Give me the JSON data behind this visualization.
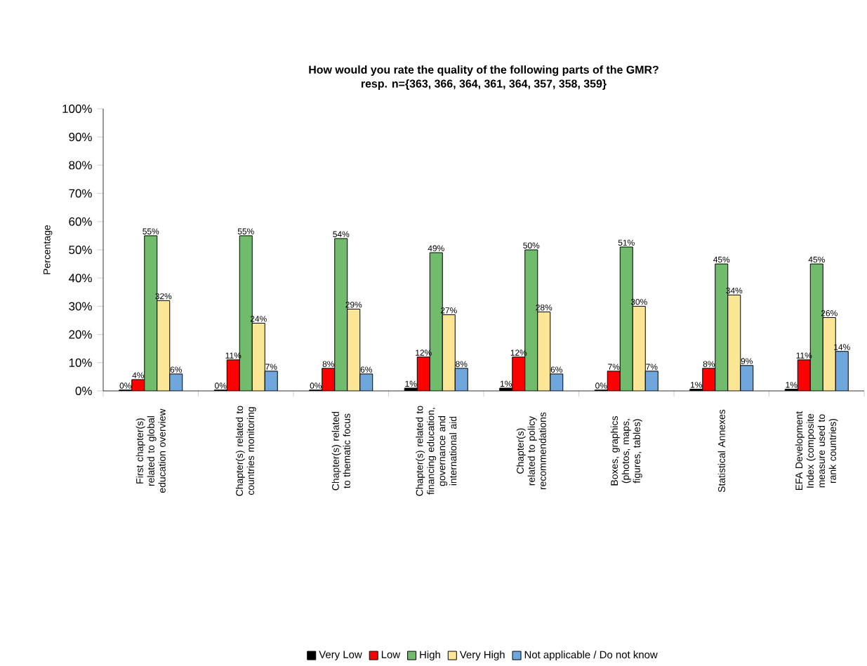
{
  "chart_data": {
    "type": "bar",
    "title": "How would you rate the quality of the following parts of the GMR?",
    "subtitle": "resp. n={363, 366, 364, 361, 364, 357, 358, 359}",
    "ylabel": "Percentage",
    "categories": [
      "First chapter(s) related to global education overview",
      "Chapter(s) related to countries monitoring",
      "Chapter(s) related to thematic focus",
      "Chapter(s) related to financing education, governance and international aid",
      "Chapter(s) related to policy recommendations",
      "Boxes, graphics (photos, maps, figures, tables)",
      "Statistical Annexes",
      "EFA Development Index (composite measure used to rank countries)"
    ],
    "series": [
      {
        "name": "Very Low",
        "color": "#000000",
        "values": [
          0.3,
          0.3,
          0.3,
          1,
          1,
          0.3,
          0.6,
          0.6
        ],
        "value_labels": [
          "0%",
          "0%",
          "0%",
          "1%",
          "1%",
          "0%",
          "1%",
          "1%"
        ]
      },
      {
        "name": "Low",
        "color": "#ff0000",
        "values": [
          4,
          11,
          8,
          12,
          12,
          7,
          8,
          11
        ],
        "value_labels": [
          "4%",
          "11%",
          "8%",
          "12%",
          "12%",
          "7%",
          "8%",
          "11%"
        ]
      },
      {
        "name": "High",
        "color": "#70bb6c",
        "values": [
          55,
          55,
          54,
          49,
          50,
          51,
          45,
          45
        ],
        "value_labels": [
          "55%",
          "55%",
          "54%",
          "49%",
          "50%",
          "51%",
          "45%",
          "45%"
        ]
      },
      {
        "name": "Very High",
        "color": "#fbe695",
        "values": [
          32,
          24,
          29,
          27,
          28,
          30,
          34,
          26
        ],
        "value_labels": [
          "32%",
          "24%",
          "29%",
          "27%",
          "28%",
          "30%",
          "34%",
          "26%"
        ]
      },
      {
        "name": "Not applicable / Do not know",
        "color": "#6fa6dc",
        "values": [
          6,
          7,
          6,
          8,
          6,
          7,
          9,
          14
        ],
        "value_labels": [
          "6%",
          "7%",
          "6%",
          "8%",
          "6%",
          "7%",
          "9%",
          "14%"
        ]
      }
    ],
    "ylim": [
      0,
      100
    ],
    "yticks": [
      {
        "value": 0,
        "label": "0%"
      },
      {
        "value": 10,
        "label": "10%"
      },
      {
        "value": 20,
        "label": "20%"
      },
      {
        "value": 30,
        "label": "30%"
      },
      {
        "value": 40,
        "label": "40%"
      },
      {
        "value": 50,
        "label": "50%"
      },
      {
        "value": 60,
        "label": "60%"
      },
      {
        "value": 70,
        "label": "70%"
      },
      {
        "value": 80,
        "label": "80%"
      },
      {
        "value": 90,
        "label": "90%"
      },
      {
        "value": 100,
        "label": "100%"
      }
    ],
    "legend": "bottom",
    "grid": false
  }
}
